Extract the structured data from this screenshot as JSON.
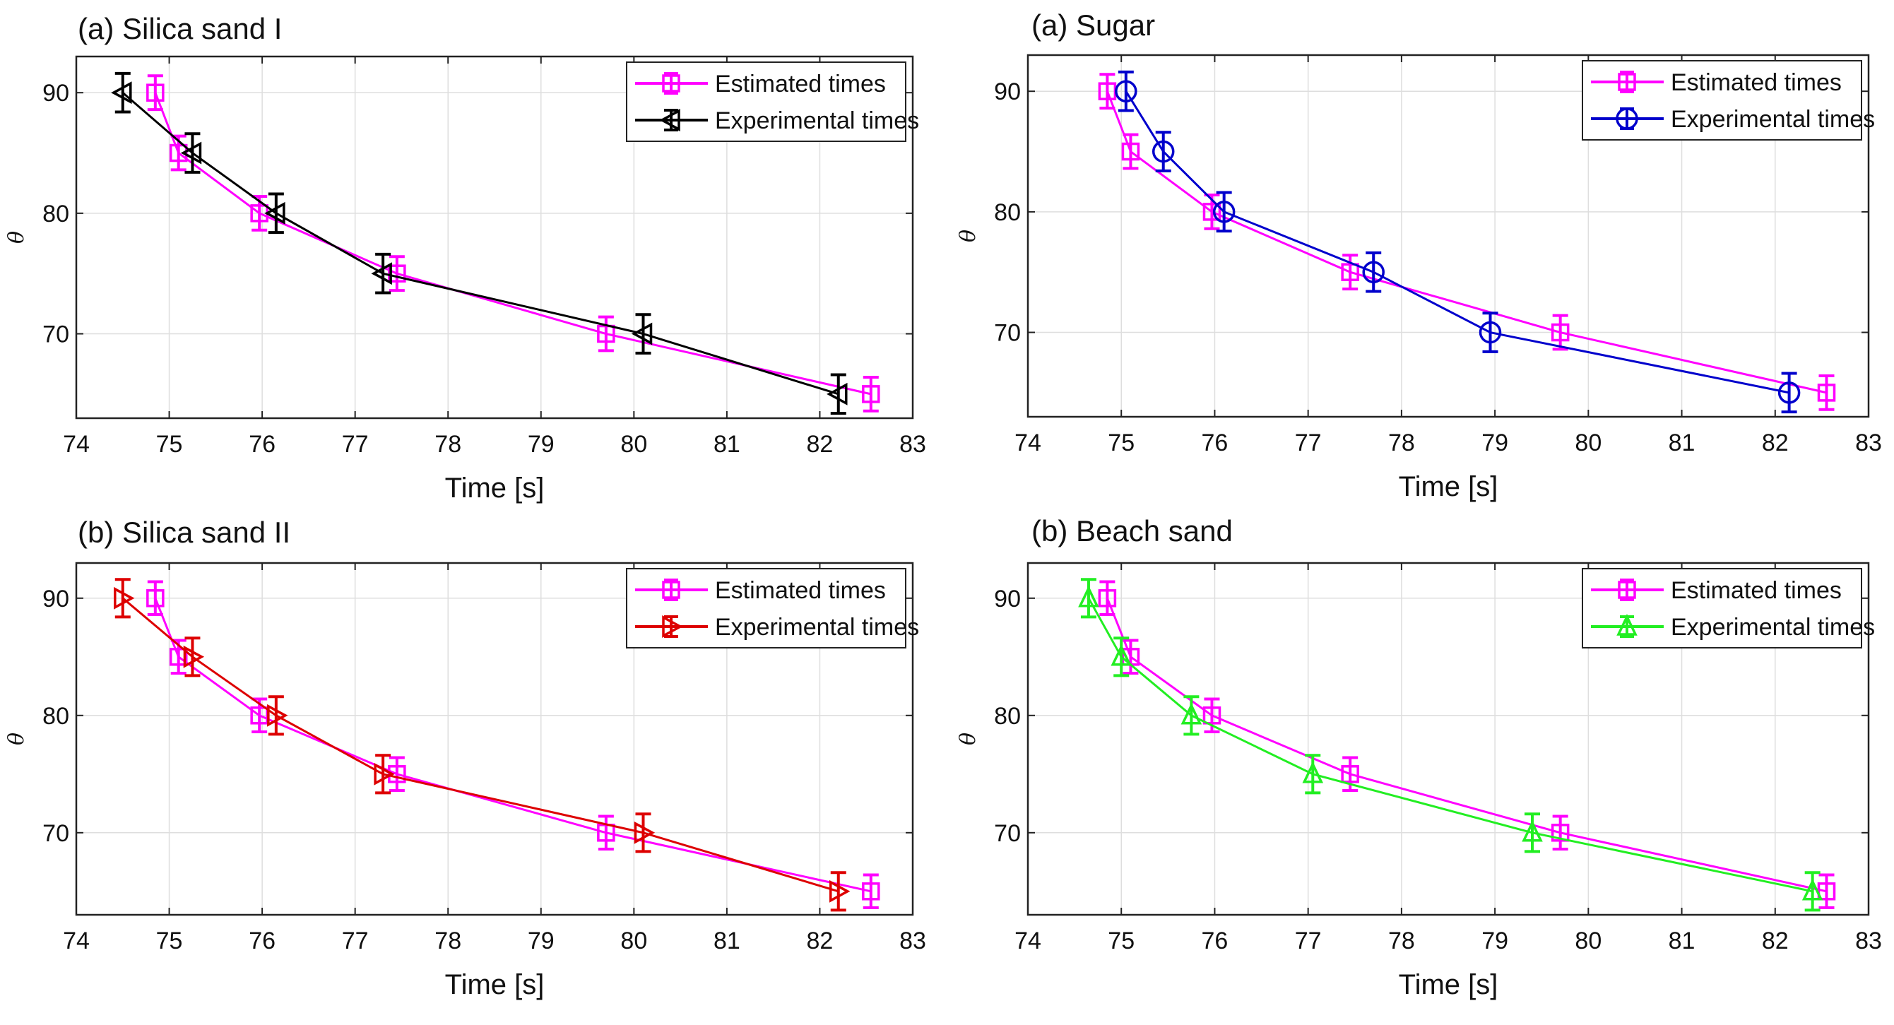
{
  "chart_data": [
    {
      "type": "line",
      "title": "(a) Silica sand I",
      "xlabel": "Time [s]",
      "ylabel": "θ",
      "xlim": [
        74,
        83
      ],
      "ylim": [
        63,
        93
      ],
      "xticks": [
        "74",
        "75",
        "76",
        "77",
        "78",
        "79",
        "80",
        "81",
        "82",
        "83"
      ],
      "yticks": [
        "70",
        "80",
        "90"
      ],
      "grid": true,
      "legend": "top-right",
      "series": [
        {
          "name": "Estimated times",
          "color": "#ff00ff",
          "marker": "square",
          "x": [
            74.85,
            75.1,
            75.97,
            77.45,
            79.7,
            82.55
          ],
          "y": [
            90,
            85,
            80,
            75,
            70,
            65
          ],
          "err": 1.4
        },
        {
          "name": "Experimental times",
          "color": "#000000",
          "marker": "triangle-left",
          "x": [
            74.5,
            75.25,
            76.15,
            77.3,
            80.1,
            82.2
          ],
          "y": [
            90,
            85,
            80,
            75,
            70,
            65
          ],
          "err": 1.6
        }
      ]
    },
    {
      "type": "line",
      "title": "(a) Sugar",
      "xlabel": "Time [s]",
      "ylabel": "θ",
      "xlim": [
        74,
        83
      ],
      "ylim": [
        63,
        93
      ],
      "xticks": [
        "74",
        "75",
        "76",
        "77",
        "78",
        "79",
        "80",
        "81",
        "82",
        "83"
      ],
      "yticks": [
        "70",
        "80",
        "90"
      ],
      "grid": true,
      "legend": "top-right",
      "series": [
        {
          "name": "Estimated times",
          "color": "#ff00ff",
          "marker": "square",
          "x": [
            74.85,
            75.1,
            75.97,
            77.45,
            79.7,
            82.55
          ],
          "y": [
            90,
            85,
            80,
            75,
            70,
            65
          ],
          "err": 1.4
        },
        {
          "name": "Experimental times",
          "color": "#0000cc",
          "marker": "circle",
          "x": [
            75.05,
            75.45,
            76.1,
            77.7,
            78.95,
            82.15
          ],
          "y": [
            90,
            85,
            80,
            75,
            70,
            65
          ],
          "err": 1.6
        }
      ]
    },
    {
      "type": "line",
      "title": "(b) Silica sand II",
      "xlabel": "Time [s]",
      "ylabel": "θ",
      "xlim": [
        74,
        83
      ],
      "ylim": [
        63,
        93
      ],
      "xticks": [
        "74",
        "75",
        "76",
        "77",
        "78",
        "79",
        "80",
        "81",
        "82",
        "83"
      ],
      "yticks": [
        "70",
        "80",
        "90"
      ],
      "grid": true,
      "legend": "top-right",
      "series": [
        {
          "name": "Estimated times",
          "color": "#ff00ff",
          "marker": "square",
          "x": [
            74.85,
            75.1,
            75.97,
            77.45,
            79.7,
            82.55
          ],
          "y": [
            90,
            85,
            80,
            75,
            70,
            65
          ],
          "err": 1.4
        },
        {
          "name": "Experimental times",
          "color": "#dd0000",
          "marker": "triangle-right",
          "x": [
            74.5,
            75.25,
            76.15,
            77.3,
            80.1,
            82.2
          ],
          "y": [
            90,
            85,
            80,
            75,
            70,
            65
          ],
          "err": 1.6
        }
      ]
    },
    {
      "type": "line",
      "title": "(b) Beach sand",
      "xlabel": "Time [s]",
      "ylabel": "θ",
      "xlim": [
        74,
        83
      ],
      "ylim": [
        63,
        93
      ],
      "xticks": [
        "74",
        "75",
        "76",
        "77",
        "78",
        "79",
        "80",
        "81",
        "82",
        "83"
      ],
      "yticks": [
        "70",
        "80",
        "90"
      ],
      "grid": true,
      "legend": "top-right",
      "series": [
        {
          "name": "Estimated times",
          "color": "#ff00ff",
          "marker": "square",
          "x": [
            74.85,
            75.1,
            75.97,
            77.45,
            79.7,
            82.55
          ],
          "y": [
            90,
            85,
            80,
            75,
            70,
            65
          ],
          "err": 1.4
        },
        {
          "name": "Experimental times",
          "color": "#22ee22",
          "marker": "triangle-up",
          "x": [
            74.65,
            75.0,
            75.75,
            77.05,
            79.4,
            82.4
          ],
          "y": [
            90,
            85,
            80,
            75,
            70,
            65
          ],
          "err": 1.6
        }
      ]
    }
  ]
}
